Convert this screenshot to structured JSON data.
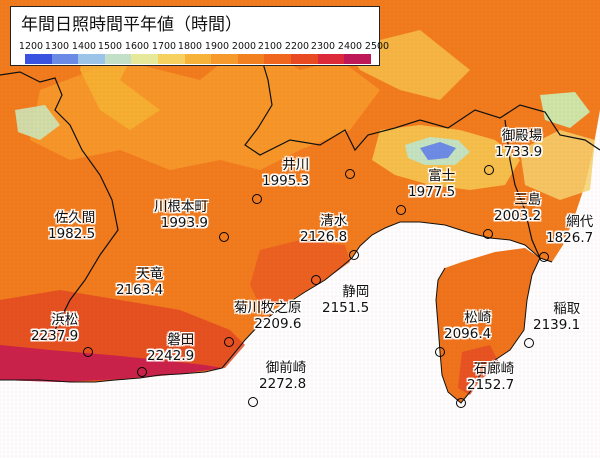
{
  "title": "年間日照時間平年値（時間）",
  "legend": {
    "ticks": [
      "1200",
      "1300",
      "1400",
      "1500",
      "1600",
      "1700",
      "1800",
      "1900",
      "2000",
      "2100",
      "2200",
      "2300",
      "2400",
      "2500"
    ],
    "colors": [
      "#3a52e0",
      "#6a8ae6",
      "#9cc4e8",
      "#c2e0c8",
      "#e6e89a",
      "#f7d160",
      "#f7b23a",
      "#f79a2c",
      "#f2801e",
      "#ef661c",
      "#e84a22",
      "#dc2a3a",
      "#bf1858"
    ]
  },
  "stations": [
    {
      "id": "gotemba",
      "name": "御殿場",
      "value": "1733.9"
    },
    {
      "id": "inokawa",
      "name": "井川",
      "value": "1995.3"
    },
    {
      "id": "fuji",
      "name": "富士",
      "value": "1977.5"
    },
    {
      "id": "kawanehonmachi",
      "name": "川根本町",
      "value": "1993.9"
    },
    {
      "id": "sakuma",
      "name": "佐久間",
      "value": "1982.5"
    },
    {
      "id": "shimizu",
      "name": "清水",
      "value": "2126.8"
    },
    {
      "id": "mishima",
      "name": "三島",
      "value": "2003.2"
    },
    {
      "id": "ajiro",
      "name": "網代",
      "value": "1826.7"
    },
    {
      "id": "tenryu",
      "name": "天竜",
      "value": "2163.4"
    },
    {
      "id": "shizuoka",
      "name": "静岡",
      "value": "2151.5"
    },
    {
      "id": "hamamatsu",
      "name": "浜松",
      "value": "2237.9"
    },
    {
      "id": "kikugawamakinohara",
      "name": "菊川牧之原",
      "value": "2209.6"
    },
    {
      "id": "iwata",
      "name": "磐田",
      "value": "2242.9"
    },
    {
      "id": "matsuzaki",
      "name": "松崎",
      "value": "2096.4"
    },
    {
      "id": "inatori",
      "name": "稲取",
      "value": "2139.1"
    },
    {
      "id": "omaezaki",
      "name": "御前崎",
      "value": "2272.8"
    },
    {
      "id": "irozaki",
      "name": "石廊崎",
      "value": "2152.7"
    }
  ]
}
